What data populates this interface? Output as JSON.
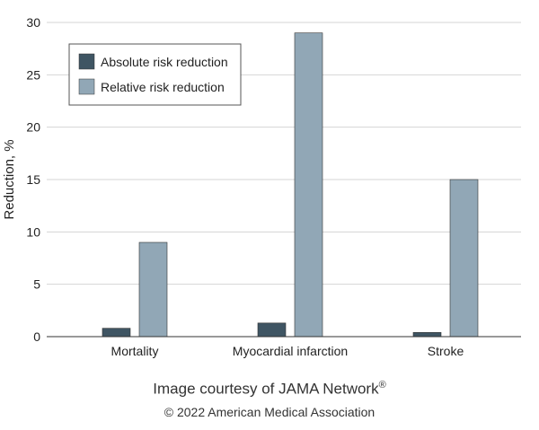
{
  "chart_data": {
    "type": "bar",
    "categories": [
      "Mortality",
      "Myocardial infarction",
      "Stroke"
    ],
    "series": [
      {
        "name": "Absolute risk reduction",
        "values": [
          0.8,
          1.3,
          0.4
        ],
        "color": "#3f5563"
      },
      {
        "name": "Relative risk reduction",
        "values": [
          9,
          29,
          15
        ],
        "color": "#91a7b6"
      }
    ],
    "ylabel": "Reduction, %",
    "ylim": [
      0,
      30
    ],
    "yticks": [
      0,
      5,
      10,
      15,
      20,
      25,
      30
    ],
    "grid": true,
    "legend": "top-left"
  },
  "credit": {
    "line1": "Image courtesy of JAMA Network",
    "mark": "®",
    "line2": "© 2022 American Medical Association"
  }
}
